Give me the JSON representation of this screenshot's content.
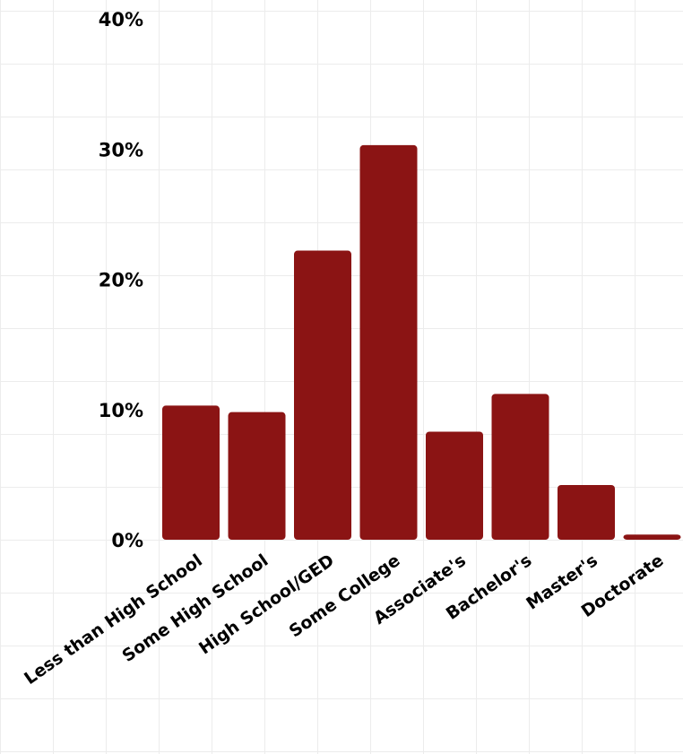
{
  "chart_data": {
    "type": "bar",
    "categories": [
      "Less than High School",
      "Some High School",
      "High School/GED",
      "Some College",
      "Associate's",
      "Bachelor's",
      "Master's",
      "Doctorate"
    ],
    "values": [
      10.3,
      9.8,
      22.2,
      30.3,
      8.3,
      11.2,
      4.2,
      0.4
    ],
    "unit": "%",
    "ylim": [
      0,
      40
    ],
    "yticks": [
      "0%",
      "10%",
      "20%",
      "30%",
      "40%"
    ],
    "xlabel": "",
    "ylabel": "",
    "title": "",
    "grid": true,
    "bar_color": "#8b1414"
  }
}
